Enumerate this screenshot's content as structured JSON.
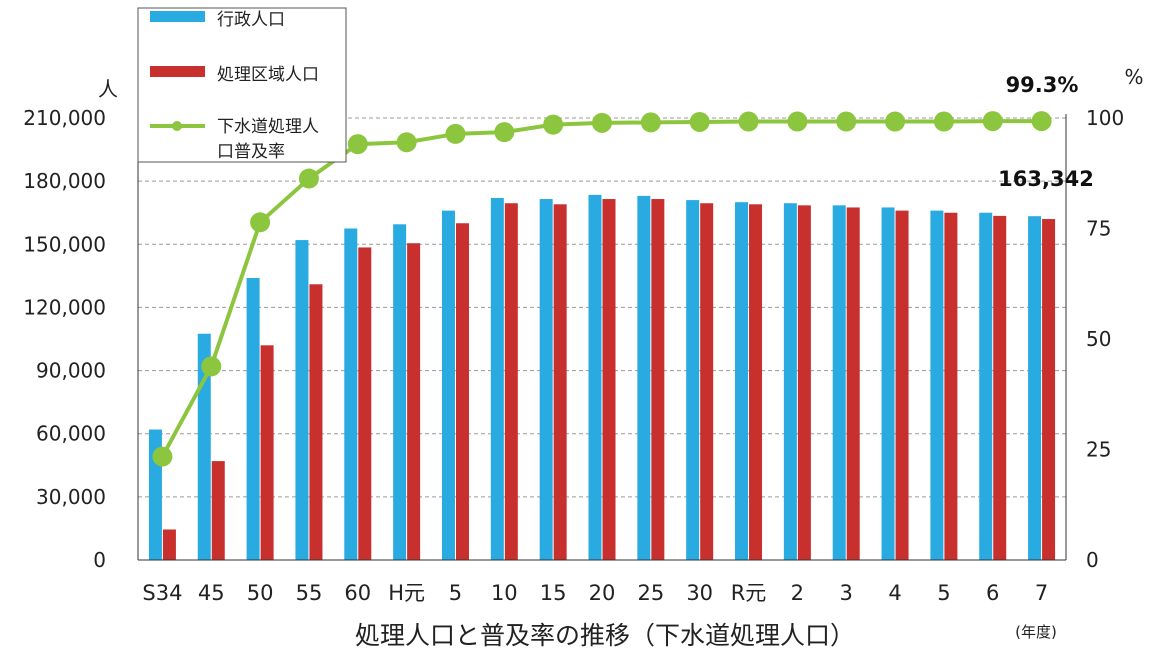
{
  "chart_data": {
    "type": "bar",
    "title": "処理人口と普及率の推移（下水道処理人口）",
    "xlabel": "(年度)",
    "ylabel": "人",
    "y2label": "%",
    "ylim": [
      0,
      210000
    ],
    "yticks": [
      0,
      30000,
      60000,
      90000,
      120000,
      150000,
      180000,
      210000
    ],
    "ytick_labels": [
      "0",
      "30,000",
      "60,000",
      "90,000",
      "120,000",
      "150,000",
      "180,000",
      "210,000"
    ],
    "y2lim": [
      0,
      100
    ],
    "y2ticks": [
      0,
      25,
      50,
      75,
      100
    ],
    "y2tick_labels": [
      "0",
      "25",
      "50",
      "75",
      "100"
    ],
    "grid": true,
    "legend_position": "top-left",
    "categories": [
      "S34",
      "45",
      "50",
      "55",
      "60",
      "H元",
      "5",
      "10",
      "15",
      "20",
      "25",
      "30",
      "R元",
      "2",
      "3",
      "4",
      "5",
      "6",
      "7"
    ],
    "series": [
      {
        "name": "行政人口",
        "kind": "bar",
        "axis": "left",
        "color": "#29aae1",
        "values": [
          62000,
          107500,
          134000,
          152000,
          157500,
          159500,
          166000,
          172000,
          171500,
          173500,
          173000,
          171000,
          170000,
          169500,
          168500,
          167500,
          166000,
          165000,
          163342
        ]
      },
      {
        "name": "処理区域人口",
        "kind": "bar",
        "axis": "left",
        "color": "#c8302e",
        "values": [
          14500,
          47000,
          102000,
          131000,
          148500,
          150500,
          160000,
          169500,
          169000,
          171500,
          171500,
          169500,
          169000,
          168500,
          167500,
          166000,
          165000,
          163500,
          162000
        ]
      },
      {
        "name": "下水道処理人口普及率",
        "kind": "line",
        "axis": "right",
        "color": "#8cc63f",
        "values": [
          23.4,
          43.8,
          76.4,
          86.3,
          94.1,
          94.5,
          96.4,
          96.8,
          98.5,
          98.9,
          99.0,
          99.1,
          99.2,
          99.2,
          99.2,
          99.2,
          99.2,
          99.3,
          99.3
        ]
      }
    ],
    "annotations": [
      {
        "text": "99.3%",
        "target": "下水道処理人口普及率"
      },
      {
        "text": "163,342",
        "target": "行政人口"
      }
    ]
  },
  "legend": {
    "item1": "行政人口",
    "item2": "処理区域人口",
    "item3_line1": "下水道処理人",
    "item3_line2": "口普及率"
  },
  "colors": {
    "bar1": "#29aae1",
    "bar2": "#c8302e",
    "line": "#8cc63f",
    "grid": "#9a9a9a"
  }
}
